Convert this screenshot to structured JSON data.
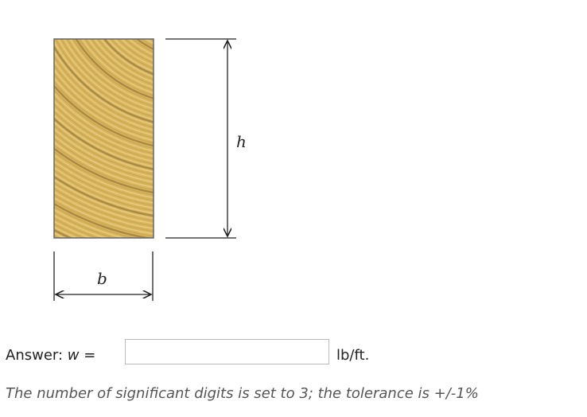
{
  "figure": {
    "height_label": "h",
    "width_label": "b"
  },
  "answer": {
    "prefix": "Answer:",
    "variable": "w",
    "equals": "=",
    "unit": "lb/ft."
  },
  "note": "The number of significant digits is set to 3; the tolerance is +/-1%"
}
